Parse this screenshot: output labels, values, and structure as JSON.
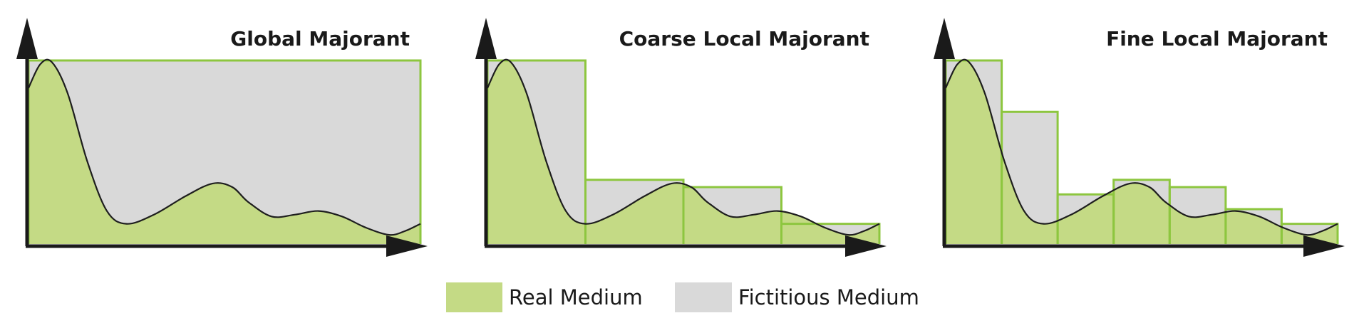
{
  "colors": {
    "real": "#c4da85",
    "fictitious": "#d9d9d9",
    "majorant_line": "#8dc63f",
    "curve": "#1e1e1e",
    "axis": "#1a1a1a"
  },
  "panels": [
    {
      "id": "global",
      "title": "Global Majorant",
      "majorant_levels": [
        1.0
      ]
    },
    {
      "id": "coarse",
      "title": "Coarse Local Majorant",
      "majorant_levels": [
        1.0,
        0.35,
        0.31,
        0.11
      ]
    },
    {
      "id": "fine",
      "title": "Fine Local Majorant",
      "majorant_levels": [
        1.0,
        0.72,
        0.27,
        0.35,
        0.31,
        0.19,
        0.11
      ]
    }
  ],
  "legend": {
    "real_label": "Real Medium",
    "fictitious_label": "Fictitious Medium"
  }
}
